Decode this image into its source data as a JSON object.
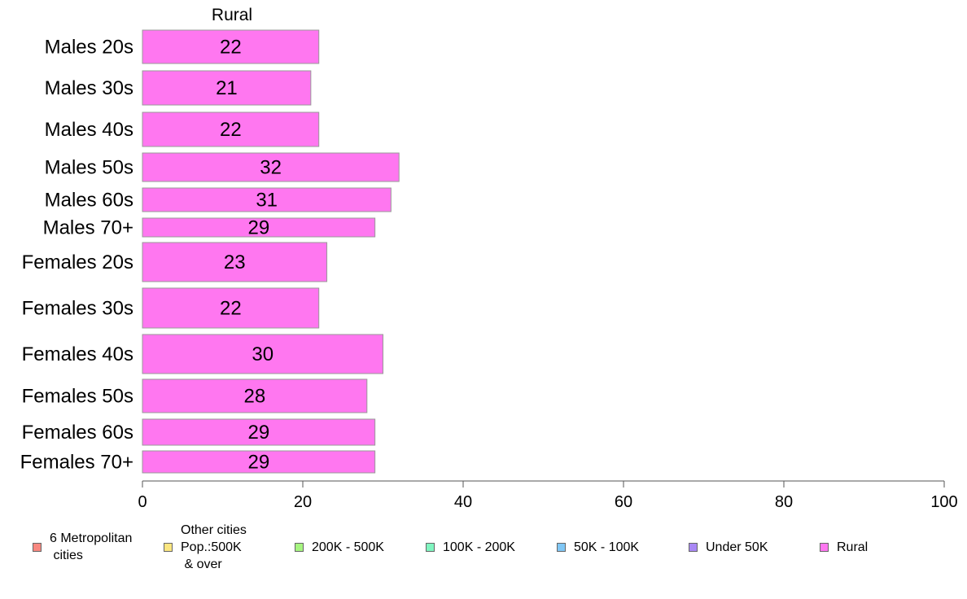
{
  "chart_data": {
    "type": "bar",
    "orientation": "horizontal",
    "panel_title": "Rural",
    "categories": [
      "Males 20s",
      "Males 30s",
      "Males 40s",
      "Males 50s",
      "Males 60s",
      "Males 70+",
      "Females 20s",
      "Females 30s",
      "Females 40s",
      "Females 50s",
      "Females 60s",
      "Females 70+"
    ],
    "values": [
      22,
      21,
      22,
      32,
      31,
      29,
      23,
      22,
      30,
      28,
      29,
      29
    ],
    "value_labels": [
      "22",
      "21",
      "22",
      "32",
      "31",
      "29",
      "23",
      "22",
      "30",
      "28",
      "29",
      "29"
    ],
    "xlim": [
      0,
      100
    ],
    "xticks": [
      0,
      20,
      40,
      60,
      80,
      100
    ],
    "xtick_labels": [
      "0",
      "20",
      "40",
      "60",
      "80",
      "100"
    ],
    "grid": false,
    "bar_color": "#ff77f0",
    "legend_position": "bottom",
    "legend": [
      {
        "label": "6 Metropolitan\n cities",
        "color": "#f88880"
      },
      {
        "label": "Other cities\nPop.:500K\n & over",
        "color": "#fbe680"
      },
      {
        "label": "200K - 500K",
        "color": "#a6f580"
      },
      {
        "label": "100K - 200K",
        "color": "#80f5c0"
      },
      {
        "label": "50K - 100K",
        "color": "#80c7f5"
      },
      {
        "label": "Under 50K",
        "color": "#a988f5"
      },
      {
        "label": "Rural",
        "color": "#ff77f0"
      }
    ]
  }
}
